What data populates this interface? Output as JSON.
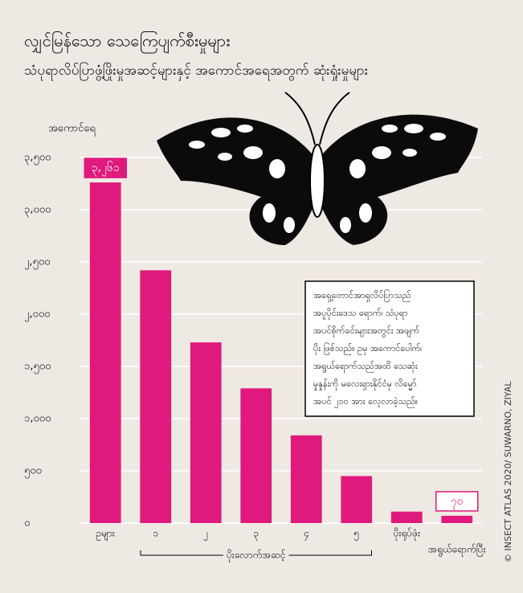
{
  "chart_data": {
    "type": "bar",
    "title": "လျှင်မြန်သော သေကြေပျက်စီးမှုများ",
    "subtitle": "သံပုရာလိပ်ပြာဖွံ့ဖြိုးမှုအဆင့်များနှင့် အကောင်အရေအတွက် ဆုံးရှုံးမှုများ",
    "y_label": "အကောင်ရေ",
    "categories": [
      "ဥများ",
      "၁",
      "၂",
      "၃",
      "၄",
      "၅",
      "ပိုးရုပ်ဖုံး",
      "အရွယ်ရောက်ပြီး"
    ],
    "group_label": "ပိုးလောက်အဆင့်",
    "values": [
      3261,
      2420,
      1730,
      1290,
      840,
      450,
      110,
      70
    ],
    "value_labels": [
      "၃,၂၆၁",
      null,
      null,
      null,
      null,
      null,
      null,
      "၇၀"
    ],
    "color": "#df1a7c",
    "ylim": [
      0,
      3500
    ],
    "yticks": [
      {
        "value": 0,
        "label": "၀"
      },
      {
        "value": 500,
        "label": "၅၀၀"
      },
      {
        "value": 1000,
        "label": "၁,၀၀၀"
      },
      {
        "value": 1500,
        "label": "၁,၅၀၀"
      },
      {
        "value": 2000,
        "label": "၂,၀၀၀"
      },
      {
        "value": 2500,
        "label": "၂,၅၀၀"
      },
      {
        "value": 3000,
        "label": "၃,၀၀၀"
      },
      {
        "value": 3500,
        "label": "၃,၅၀၀"
      }
    ],
    "grid": true,
    "annotation": [
      "အရှေ့တောင်အာရှလိပ်ပြာသည်",
      "အပူပိုင်းဒေသ ရောက်၊ သံပုရာ",
      "အပင်စိုက်ခင်းများအတွင်း အဖျက်",
      "ပိုး ဖြစ်သည်။ ဥမှ အကောင်ပေါက်၊",
      "အရွယ်ရောက်သည်အထိ သေဆုံး",
      "မှုနှုန်းကို မလေးရှားနိုင်ငံမှ လိမ္မော်",
      "အပင် ၂၁၀ အား လေ့လာခဲ့သည်။"
    ],
    "credit": "© INSECT ATLAS 2020/ SUWARNO, ZIYAL"
  }
}
